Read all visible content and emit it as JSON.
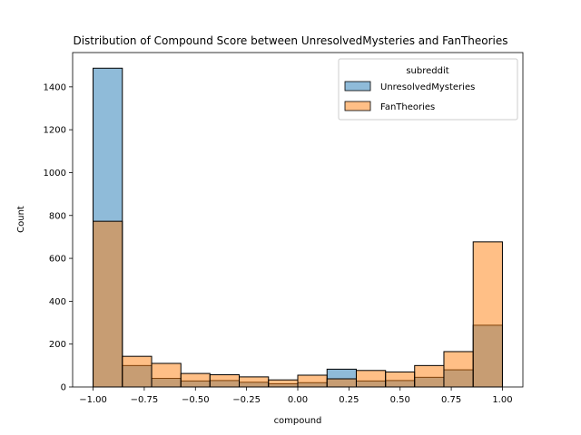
{
  "chart_data": {
    "type": "bar",
    "title": "Distribution of Compound Score between UnresolvedMysteries and FanTheories",
    "xlabel": "compound",
    "ylabel": "Count",
    "xlim": [
      -1.1,
      1.1
    ],
    "ylim": [
      0,
      1560
    ],
    "xticks": [
      -1.0,
      -0.75,
      -0.5,
      -0.25,
      0.0,
      0.25,
      0.5,
      0.75,
      1.0
    ],
    "xtick_labels": [
      "−1.00",
      "−0.75",
      "−0.50",
      "−0.25",
      "0.00",
      "0.25",
      "0.50",
      "0.75",
      "1.00"
    ],
    "yticks": [
      0,
      200,
      400,
      600,
      800,
      1000,
      1200,
      1400
    ],
    "ytick_labels": [
      "0",
      "200",
      "400",
      "600",
      "800",
      "1000",
      "1200",
      "1400"
    ],
    "bin_edges": [
      -1.0,
      -0.857,
      -0.714,
      -0.571,
      -0.429,
      -0.286,
      -0.143,
      0.0,
      0.143,
      0.286,
      0.429,
      0.571,
      0.714,
      0.857,
      1.0
    ],
    "grid": false,
    "legend": {
      "title": "subreddit",
      "placement": "top-right"
    },
    "series": [
      {
        "name": "UnresolvedMysteries",
        "color": "#1f77b4",
        "values": [
          1487,
          100,
          40,
          28,
          30,
          22,
          15,
          20,
          83,
          28,
          30,
          45,
          80,
          288
        ]
      },
      {
        "name": "FanTheories",
        "color": "#ff7f0e",
        "values": [
          773,
          143,
          110,
          63,
          57,
          47,
          33,
          55,
          38,
          77,
          70,
          100,
          165,
          677
        ]
      }
    ]
  }
}
